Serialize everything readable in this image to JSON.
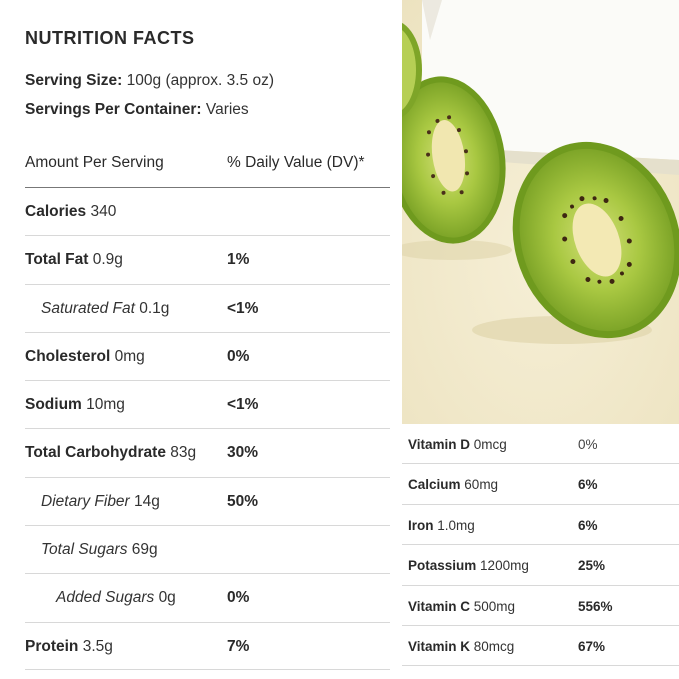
{
  "title": "NUTRITION FACTS",
  "serving": {
    "size_label": "Serving Size:",
    "size_value": "100g (approx. 3.5 oz)",
    "per_container_label": "Servings Per Container:",
    "per_container_value": "Varies"
  },
  "table_header": {
    "amount": "Amount Per Serving",
    "dv": "% Daily Value (DV)*"
  },
  "nutrients": [
    {
      "name": "Calories",
      "amount": "340",
      "dv": ""
    },
    {
      "name": "Total Fat",
      "amount": "0.9g",
      "dv": "1%"
    },
    {
      "name": "Saturated Fat",
      "amount": "0.1g",
      "dv": "<1%"
    },
    {
      "name": "Cholesterol",
      "amount": "0mg",
      "dv": "0%"
    },
    {
      "name": "Sodium",
      "amount": "10mg",
      "dv": "<1%"
    },
    {
      "name": "Total Carbohydrate",
      "amount": "83g",
      "dv": "30%"
    },
    {
      "name": "Dietary Fiber",
      "amount": "14g",
      "dv": "50%"
    },
    {
      "name": "Total Sugars",
      "amount": "69g",
      "dv": ""
    },
    {
      "name": "Added Sugars",
      "amount": "0g",
      "dv": "0%"
    },
    {
      "name": "Protein",
      "amount": "3.5g",
      "dv": "7%"
    }
  ],
  "vitamins": [
    {
      "name": "Vitamin D",
      "amount": "0mcg",
      "dv": "0%"
    },
    {
      "name": "Calcium",
      "amount": "60mg",
      "dv": "6%"
    },
    {
      "name": "Iron",
      "amount": "1.0mg",
      "dv": "6%"
    },
    {
      "name": "Potassium",
      "amount": "1200mg",
      "dv": "25%"
    },
    {
      "name": "Vitamin C",
      "amount": "500mg",
      "dv": "556%"
    },
    {
      "name": "Vitamin K",
      "amount": "80mcg",
      "dv": "67%"
    }
  ],
  "colors": {
    "kiwi_flesh": "#9fc43a",
    "kiwi_skin": "#6f9a1e",
    "kiwi_core": "#f3e9b4",
    "background_cream": "#f1ead0"
  }
}
